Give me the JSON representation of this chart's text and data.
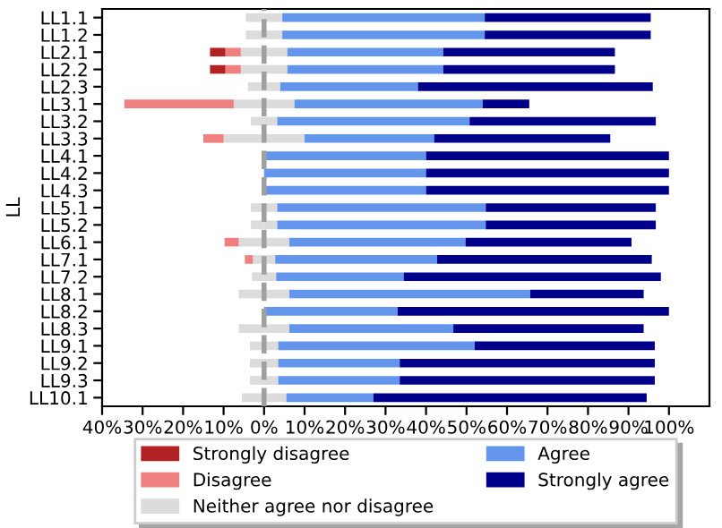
{
  "chart_data": {
    "type": "bar",
    "orientation": "horizontal",
    "stacked": true,
    "ylabel": "LL",
    "categories": [
      "LL1.1",
      "LL1.2",
      "LL2.1",
      "LL2.2",
      "LL2.3",
      "LL3.1",
      "LL3.2",
      "LL3.3",
      "LL4.1",
      "LL4.2",
      "LL4.3",
      "LL5.1",
      "LL5.2",
      "LL6.1",
      "LL7.1",
      "LL7.2",
      "LL8.1",
      "LL8.2",
      "LL8.3",
      "LL9.1",
      "LL9.2",
      "LL9.3",
      "LL10.1"
    ],
    "series": [
      {
        "color": "#dcdcdc",
        "values": [
          -4.5,
          -4.5,
          -5.75,
          -5.75,
          -4,
          -7.5,
          -3.25,
          -10,
          0,
          0,
          0,
          -3.25,
          -3.25,
          -6.25,
          -2.75,
          -3,
          -6.25,
          0,
          -6.25,
          -3.5,
          -3.5,
          -3.5,
          -5.5
        ]
      },
      {
        "name": "Disagree",
        "color": "#f08080",
        "values": [
          0,
          0,
          -3.8,
          -3.8,
          0,
          -27,
          0,
          -5,
          0,
          0,
          0,
          0,
          0,
          -3.5,
          -2,
          0,
          0,
          0,
          0,
          0,
          0,
          0,
          0
        ]
      },
      {
        "name": "Strongly disagree",
        "color": "#b22222",
        "values": [
          0,
          0,
          -3.8,
          -3.8,
          0,
          0,
          0,
          0,
          0,
          0,
          0,
          0,
          0,
          0,
          0,
          0,
          0,
          0,
          0,
          0,
          0,
          0,
          0
        ]
      },
      {
        "name": "Neither agree nor disagree",
        "color": "#dcdcdc",
        "values": [
          4.5,
          4.5,
          5.75,
          5.75,
          4,
          7.5,
          3.25,
          10,
          0,
          0,
          0,
          3.25,
          3.25,
          6.25,
          2.75,
          3,
          6.25,
          0,
          6.25,
          3.5,
          3.5,
          3.5,
          5.5
        ]
      },
      {
        "name": "Agree",
        "color": "#6495ed",
        "values": [
          50,
          50,
          38.5,
          38.5,
          34,
          46.5,
          47.5,
          32,
          40,
          40,
          40,
          51.5,
          51.5,
          43.5,
          40,
          31.5,
          59.5,
          33,
          40.5,
          48.5,
          30,
          30,
          21.5
        ]
      },
      {
        "name": "Strongly agree",
        "color": "#00008b",
        "values": [
          41,
          41,
          42.4,
          42.4,
          58,
          11.5,
          46,
          43.5,
          60,
          60,
          60,
          42,
          42,
          41,
          53,
          63.5,
          28,
          67,
          47,
          44.5,
          63,
          63,
          67.5
        ]
      }
    ],
    "xlim": [
      -40,
      110
    ],
    "xticks": [
      {
        "value": -40,
        "label": "40%"
      },
      {
        "value": -30,
        "label": "30%"
      },
      {
        "value": -20,
        "label": "20%"
      },
      {
        "value": -10,
        "label": "10%"
      },
      {
        "value": 0,
        "label": "0%"
      },
      {
        "value": 10,
        "label": "10%"
      },
      {
        "value": 20,
        "label": "20%"
      },
      {
        "value": 30,
        "label": "30%"
      },
      {
        "value": 40,
        "label": "40%"
      },
      {
        "value": 50,
        "label": "50%"
      },
      {
        "value": 60,
        "label": "60%"
      },
      {
        "value": 70,
        "label": "70%"
      },
      {
        "value": 80,
        "label": "80%"
      },
      {
        "value": 90,
        "label": "90%"
      },
      {
        "value": 100,
        "label": "100%"
      }
    ],
    "ref_lines": [
      {
        "axis": "x",
        "value": 0,
        "color": "#a0a0a0",
        "line_style": "dashed"
      }
    ],
    "legend": "bottom"
  }
}
